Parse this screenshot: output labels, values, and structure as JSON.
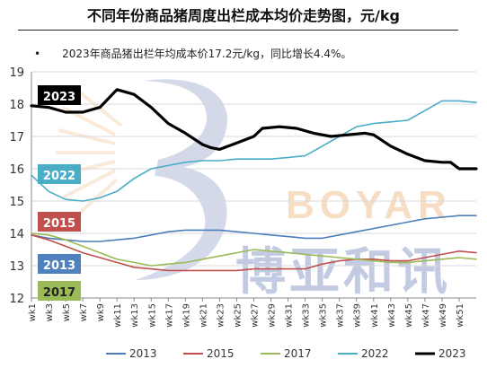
{
  "title": "不同年份商品猪周度出栏成本均价走势图，元/kg",
  "note": "2023年商品猪出栏年均成本价17.2元/kg，同比增长4.4%。",
  "watermark": {
    "latin": "BOYAR",
    "chinese": "博亚和讯"
  },
  "chart_data": {
    "type": "line",
    "title": "不同年份商品猪周度出栏成本均价走势图，元/kg",
    "ylim": [
      12,
      19
    ],
    "yticks": [
      12,
      13,
      14,
      15,
      16,
      17,
      18,
      19
    ],
    "xlabels": [
      "wk1",
      "wk3",
      "wk5",
      "wk7",
      "wk9",
      "wk11",
      "wk13",
      "wk15",
      "wk17",
      "wk19",
      "wk21",
      "wk23",
      "wk25",
      "wk27",
      "wk29",
      "wk31",
      "wk33",
      "wk35",
      "wk37",
      "wk39",
      "wk41",
      "wk43",
      "wk45",
      "wk47",
      "wk49",
      "wk51"
    ],
    "legend_position": "bottom",
    "series": [
      {
        "name": "2013",
        "color": "#4a7ebb",
        "width": 1.6,
        "label_box": "#4f81bd",
        "points": [
          [
            1,
            13.95
          ],
          [
            3,
            13.85
          ],
          [
            5,
            13.8
          ],
          [
            7,
            13.75
          ],
          [
            9,
            13.75
          ],
          [
            11,
            13.8
          ],
          [
            13,
            13.85
          ],
          [
            15,
            13.95
          ],
          [
            17,
            14.05
          ],
          [
            19,
            14.1
          ],
          [
            21,
            14.1
          ],
          [
            23,
            14.1
          ],
          [
            25,
            14.05
          ],
          [
            27,
            14.0
          ],
          [
            29,
            13.95
          ],
          [
            31,
            13.9
          ],
          [
            33,
            13.85
          ],
          [
            35,
            13.85
          ],
          [
            37,
            13.95
          ],
          [
            39,
            14.05
          ],
          [
            41,
            14.15
          ],
          [
            43,
            14.25
          ],
          [
            45,
            14.35
          ],
          [
            47,
            14.45
          ],
          [
            49,
            14.5
          ],
          [
            51,
            14.55
          ],
          [
            53,
            14.55
          ]
        ]
      },
      {
        "name": "2015",
        "color": "#c0504d",
        "width": 1.6,
        "label_box": "#c0504d",
        "points": [
          [
            1,
            13.95
          ],
          [
            3,
            13.8
          ],
          [
            5,
            13.6
          ],
          [
            7,
            13.4
          ],
          [
            9,
            13.25
          ],
          [
            11,
            13.1
          ],
          [
            13,
            12.95
          ],
          [
            15,
            12.9
          ],
          [
            17,
            12.85
          ],
          [
            19,
            12.85
          ],
          [
            21,
            12.85
          ],
          [
            23,
            12.85
          ],
          [
            25,
            12.85
          ],
          [
            27,
            12.9
          ],
          [
            29,
            12.9
          ],
          [
            31,
            12.9
          ],
          [
            33,
            12.9
          ],
          [
            35,
            13.05
          ],
          [
            37,
            13.15
          ],
          [
            39,
            13.2
          ],
          [
            41,
            13.2
          ],
          [
            43,
            13.15
          ],
          [
            45,
            13.15
          ],
          [
            47,
            13.25
          ],
          [
            49,
            13.35
          ],
          [
            51,
            13.45
          ],
          [
            53,
            13.4
          ]
        ]
      },
      {
        "name": "2017",
        "color": "#9bbb59",
        "width": 1.6,
        "label_box": "#9bbb59",
        "points": [
          [
            1,
            14.0
          ],
          [
            3,
            13.95
          ],
          [
            5,
            13.8
          ],
          [
            7,
            13.6
          ],
          [
            9,
            13.4
          ],
          [
            11,
            13.2
          ],
          [
            13,
            13.1
          ],
          [
            15,
            13.0
          ],
          [
            17,
            13.05
          ],
          [
            19,
            13.1
          ],
          [
            21,
            13.2
          ],
          [
            23,
            13.3
          ],
          [
            25,
            13.4
          ],
          [
            27,
            13.5
          ],
          [
            29,
            13.45
          ],
          [
            31,
            13.4
          ],
          [
            33,
            13.35
          ],
          [
            35,
            13.3
          ],
          [
            37,
            13.25
          ],
          [
            39,
            13.2
          ],
          [
            41,
            13.15
          ],
          [
            43,
            13.1
          ],
          [
            45,
            13.1
          ],
          [
            47,
            13.15
          ],
          [
            49,
            13.2
          ],
          [
            51,
            13.25
          ],
          [
            53,
            13.2
          ]
        ]
      },
      {
        "name": "2022",
        "color": "#4bacc6",
        "width": 1.6,
        "label_box": "#4bacc6",
        "points": [
          [
            1,
            15.8
          ],
          [
            3,
            15.3
          ],
          [
            5,
            15.05
          ],
          [
            7,
            15.0
          ],
          [
            9,
            15.1
          ],
          [
            11,
            15.3
          ],
          [
            13,
            15.7
          ],
          [
            15,
            16.0
          ],
          [
            17,
            16.1
          ],
          [
            19,
            16.2
          ],
          [
            21,
            16.25
          ],
          [
            23,
            16.25
          ],
          [
            25,
            16.3
          ],
          [
            27,
            16.3
          ],
          [
            29,
            16.3
          ],
          [
            31,
            16.35
          ],
          [
            33,
            16.4
          ],
          [
            35,
            16.7
          ],
          [
            37,
            17.0
          ],
          [
            39,
            17.3
          ],
          [
            41,
            17.4
          ],
          [
            43,
            17.45
          ],
          [
            45,
            17.5
          ],
          [
            47,
            17.8
          ],
          [
            49,
            18.1
          ],
          [
            51,
            18.1
          ],
          [
            53,
            18.05
          ]
        ]
      },
      {
        "name": "2023",
        "color": "#000000",
        "width": 3.2,
        "label_box": "#000000",
        "points": [
          [
            1,
            17.95
          ],
          [
            3,
            17.9
          ],
          [
            5,
            17.75
          ],
          [
            7,
            17.75
          ],
          [
            9,
            17.9
          ],
          [
            11,
            18.45
          ],
          [
            13,
            18.3
          ],
          [
            15,
            17.9
          ],
          [
            17,
            17.4
          ],
          [
            19,
            17.1
          ],
          [
            21,
            16.75
          ],
          [
            22,
            16.65
          ],
          [
            23,
            16.6
          ],
          [
            25,
            16.8
          ],
          [
            27,
            17.0
          ],
          [
            28,
            17.25
          ],
          [
            30,
            17.3
          ],
          [
            32,
            17.25
          ],
          [
            34,
            17.1
          ],
          [
            36,
            17.0
          ],
          [
            38,
            17.05
          ],
          [
            40,
            17.1
          ],
          [
            41,
            17.05
          ],
          [
            43,
            16.7
          ],
          [
            45,
            16.45
          ],
          [
            47,
            16.25
          ],
          [
            49,
            16.2
          ],
          [
            50,
            16.2
          ],
          [
            51,
            16.0
          ],
          [
            53,
            16.0
          ]
        ]
      }
    ]
  }
}
